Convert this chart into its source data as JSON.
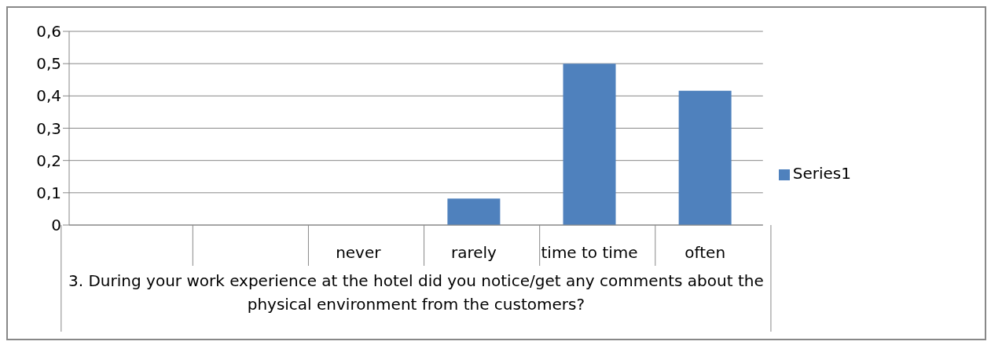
{
  "chart_data": {
    "type": "bar",
    "xlabel": "3. During your work experience at the hotel did you notice/get any comments about the physical environment from the customers?",
    "categories": [
      null,
      null,
      "never",
      "rarely",
      "time to time",
      "often"
    ],
    "series": [
      {
        "name": "Series1",
        "color": "#4f81bd",
        "values": [
          null,
          null,
          0,
          0.082,
          0.5,
          0.416
        ]
      }
    ],
    "ylim": [
      0,
      0.6
    ],
    "yticks": [
      0,
      {
        "value": 0.1,
        "label": "0,1"
      },
      {
        "value": 0.2,
        "label": "0,2"
      },
      {
        "value": 0.3,
        "label": "0,3"
      },
      {
        "value": 0.4,
        "label": "0,4"
      },
      {
        "value": 0.5,
        "label": "0,5"
      },
      {
        "value": 0.6,
        "label": "0,6"
      }
    ],
    "grid": "y",
    "legend": "right"
  }
}
